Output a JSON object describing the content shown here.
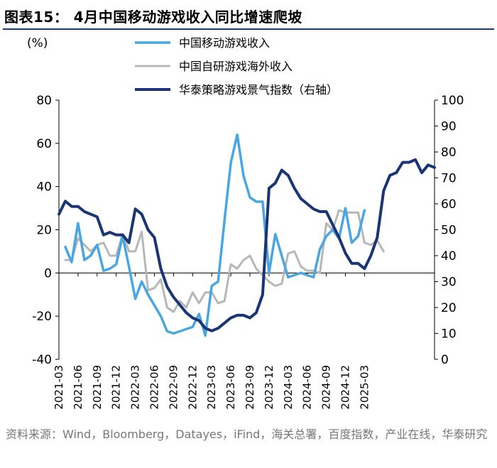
{
  "title": "图表15：  4月中国移动游戏收入同比增速爬坡",
  "source": "资料来源：Wind，Bloomberg，Datayes，iFind，海关总署，百度指数，产业在线，华泰研究",
  "chart_data": {
    "type": "line",
    "ylabel_left": "(%)",
    "ylim_left": [
      -40,
      80
    ],
    "yticks_left": [
      -40,
      -20,
      0,
      20,
      40,
      60,
      80
    ],
    "ylim_right": [
      0,
      100
    ],
    "yticks_right": [
      0,
      10,
      20,
      30,
      40,
      50,
      60,
      70,
      80,
      90,
      100
    ],
    "x_tick_labels": [
      "2021-03",
      "2021-06",
      "2021-09",
      "2021-12",
      "2022-03",
      "2022-06",
      "2022-09",
      "2022-12",
      "2023-03",
      "2023-06",
      "2023-09",
      "2023-12",
      "2024-03",
      "2024-06",
      "2024-09",
      "2024-12",
      "2025-03"
    ],
    "x_start": "2021-03",
    "series": [
      {
        "name": "中国移动游戏收入",
        "axis": "left",
        "color": "#4aa6e0",
        "start_index": 1,
        "values": [
          12,
          5,
          23,
          6,
          8,
          13,
          1,
          2,
          4,
          17,
          3,
          -12,
          -4,
          -10,
          -15,
          -20,
          -27,
          -28,
          -27,
          -26,
          -25,
          -19,
          -29,
          -6,
          -4,
          24,
          51,
          64,
          45,
          35,
          33,
          33,
          0,
          18,
          8,
          -2,
          -1,
          0,
          -1,
          -2,
          11,
          17,
          20,
          16,
          30,
          14,
          17,
          29
        ]
      },
      {
        "name": "中国自研游戏海外收入",
        "axis": "left",
        "color": "#b7b7b7",
        "start_index": 1,
        "values": [
          6,
          6,
          16,
          13,
          10,
          13,
          14,
          8,
          8,
          18,
          10,
          10,
          19,
          -8,
          -7,
          -3,
          -16,
          -18,
          -13,
          -16,
          -9,
          -14,
          -9,
          -9,
          -14,
          -13,
          4,
          2,
          6,
          8,
          2,
          -1,
          -4,
          -6,
          -5,
          9,
          10,
          3,
          1,
          1,
          0,
          23,
          20,
          29,
          28,
          28,
          28,
          14,
          13,
          15,
          10
        ]
      },
      {
        "name": "华泰策略游戏景气指数（右轴）",
        "axis": "right",
        "color": "#1a3575",
        "start_index": 0,
        "values": [
          56,
          61,
          59,
          59,
          57,
          56,
          55,
          48,
          49,
          48,
          48,
          45,
          58,
          56,
          50,
          47,
          35,
          28,
          24,
          21,
          18,
          16,
          15,
          12,
          11,
          12,
          14,
          16,
          17,
          17,
          16,
          18,
          25,
          66,
          68,
          73,
          71,
          66,
          62,
          60,
          58,
          57,
          57,
          52,
          47,
          41,
          37,
          37,
          35,
          40,
          47,
          65,
          71,
          72,
          76,
          76,
          77,
          72,
          75,
          74
        ]
      }
    ]
  }
}
